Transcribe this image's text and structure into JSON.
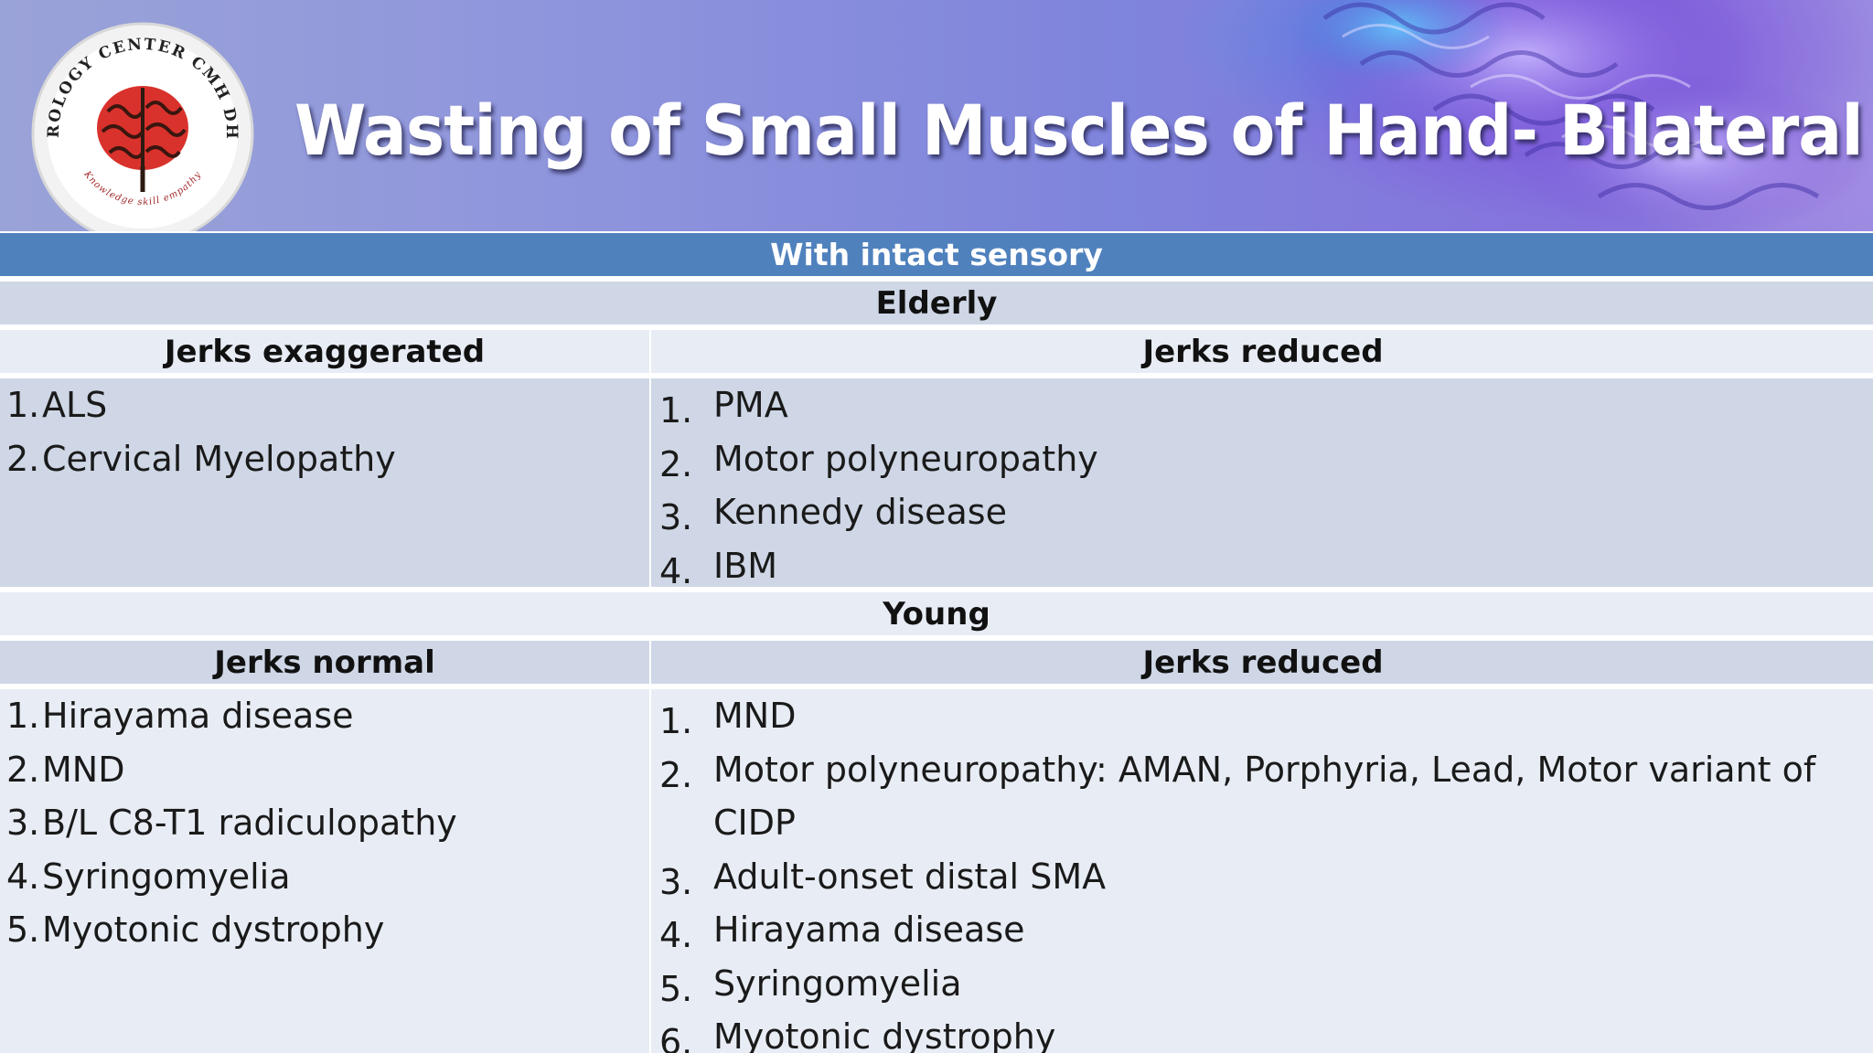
{
  "header": {
    "title": "Wasting of Small Muscles of Hand- Bilateral",
    "logo": {
      "ring_text": "NEUROLOGY CENTER CMH DHAKA",
      "motto": "Knowledge skill empathy",
      "icon": "brain-icon"
    }
  },
  "table": {
    "banner": "With intact sensory",
    "sections": [
      {
        "title": "Elderly",
        "left": {
          "header": "Jerks exaggerated",
          "items": [
            {
              "num": "1.",
              "text": "ALS"
            },
            {
              "num": "2.",
              "text": "Cervical Myelopathy"
            }
          ]
        },
        "right": {
          "header": "Jerks reduced",
          "items": [
            {
              "num": "1.",
              "text": "PMA"
            },
            {
              "num": "2.",
              "text": "Motor polyneuropathy"
            },
            {
              "num": "3.",
              "text": "Kennedy disease"
            },
            {
              "num": "4.",
              "text": "IBM"
            }
          ]
        }
      },
      {
        "title": "Young",
        "left": {
          "header": "Jerks normal",
          "items": [
            {
              "num": "1.",
              "text": "Hirayama disease"
            },
            {
              "num": "2.",
              "text": "MND"
            },
            {
              "num": "3.",
              "text": "B/L C8-T1 radiculopathy"
            },
            {
              "num": "4.",
              "text": "Syringomyelia"
            },
            {
              "num": "5.",
              "text": "Myotonic dystrophy"
            }
          ]
        },
        "right": {
          "header": "Jerks reduced",
          "items": [
            {
              "num": "1.",
              "text": "MND"
            },
            {
              "num": "2.",
              "text": "Motor polyneuropathy: AMAN, Porphyria, Lead, Motor variant of CIDP"
            },
            {
              "num": "3.",
              "text": "Adult-onset distal SMA"
            },
            {
              "num": "4.",
              "text": "Hirayama disease"
            },
            {
              "num": "5.",
              "text": "Syringomyelia"
            },
            {
              "num": "6.",
              "text": "Myotonic dystrophy"
            }
          ]
        }
      }
    ]
  },
  "colors": {
    "banner": "#4f81bd",
    "row_light": "#e8edf5",
    "row_dark": "#cfd7e6",
    "title_text": "#ffffff"
  }
}
